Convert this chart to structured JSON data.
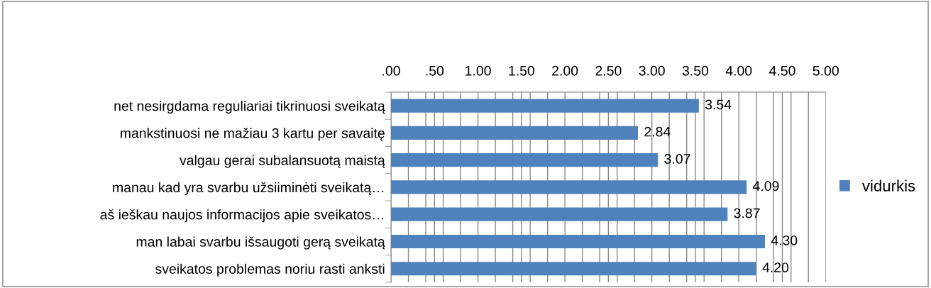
{
  "chart_data": {
    "type": "bar",
    "orientation": "horizontal",
    "categories": [
      "net nesirgdama reguliariai tikrinuosi sveikatą",
      "mankstinuosi ne mažiau 3 kartu per savaitę",
      "valgau gerai subalansuotą maistą",
      "manau kad yra svarbu užsiiminėti sveikatą…",
      "aš ieškau naujos informacijos apie sveikatos…",
      "man labai svarbu išsaugoti gerą sveikatą",
      "sveikatos problemas noriu rasti anksti"
    ],
    "series": [
      {
        "name": "vidurkis",
        "color": "#4f81bd",
        "values": [
          3.54,
          2.84,
          3.07,
          4.09,
          3.87,
          4.3,
          4.2
        ]
      }
    ],
    "value_labels": [
      "3.54",
      "2.84",
      "3.07",
      "4.09",
      "3.87",
      "4.30",
      "4.20"
    ],
    "xlim": [
      0,
      5
    ],
    "xticks": [
      {
        "value": 0,
        "label": ".00"
      },
      {
        "value": 0.5,
        "label": ".50"
      },
      {
        "value": 1,
        "label": "1.00"
      },
      {
        "value": 1.5,
        "label": "1.50"
      },
      {
        "value": 2,
        "label": "2.00"
      },
      {
        "value": 2.5,
        "label": "2.50"
      },
      {
        "value": 3,
        "label": "3.00"
      },
      {
        "value": 3.5,
        "label": "3.50"
      },
      {
        "value": 4,
        "label": "4.00"
      },
      {
        "value": 4.5,
        "label": "4.50"
      },
      {
        "value": 5,
        "label": "5.00"
      },
      {
        "value": 0.2,
        "label": null
      },
      {
        "value": 0.4,
        "label": null
      },
      {
        "value": 0.6,
        "label": null
      },
      {
        "value": 0.8,
        "label": null
      },
      {
        "value": 1.2,
        "label": null
      },
      {
        "value": 1.4,
        "label": null
      },
      {
        "value": 1.6,
        "label": null
      },
      {
        "value": 1.8,
        "label": null
      },
      {
        "value": 2.2,
        "label": null
      },
      {
        "value": 2.4,
        "label": null
      },
      {
        "value": 2.6,
        "label": null
      },
      {
        "value": 2.8,
        "label": null
      },
      {
        "value": 3.2,
        "label": null
      },
      {
        "value": 3.4,
        "label": null
      },
      {
        "value": 3.6,
        "label": null
      },
      {
        "value": 3.8,
        "label": null
      },
      {
        "value": 4.2,
        "label": null
      },
      {
        "value": 4.4,
        "label": null
      },
      {
        "value": 4.6,
        "label": null
      },
      {
        "value": 4.8,
        "label": null
      }
    ],
    "grid": "x",
    "legend": "right"
  }
}
